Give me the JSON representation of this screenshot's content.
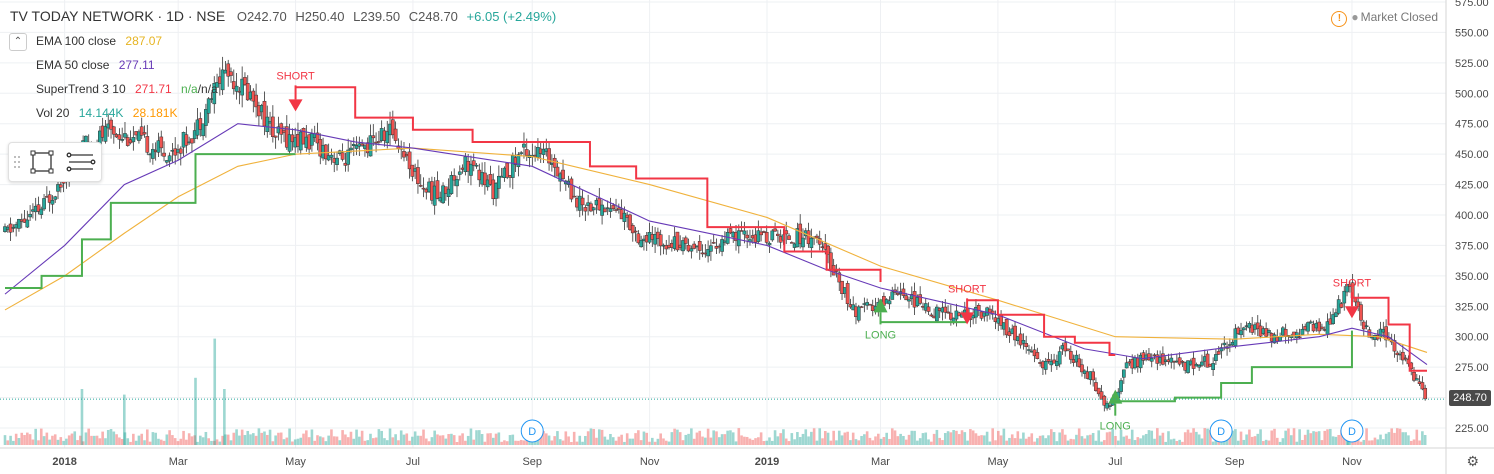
{
  "header": {
    "symbol": "TV TODAY NETWORK · 1D · NSE",
    "open": "O242.70",
    "high": "H250.40",
    "low": "L239.50",
    "close": "C248.70",
    "change": "+6.05 (+2.49%)"
  },
  "indicators": [
    {
      "name": "EMA 100 close",
      "value": "287.07",
      "color": "#e6b422"
    },
    {
      "name": "EMA 50 close",
      "value": "277.11",
      "color": "#673ab7"
    },
    {
      "name": "SuperTrend 3 10",
      "value": "271.71",
      "value2": "n/a",
      "value3": "n/a",
      "color": "#f23645"
    },
    {
      "name": "Vol 20",
      "value": "14.144K",
      "value2": "28.181K",
      "color": "#26a69a",
      "color2": "#ff9800"
    }
  ],
  "market_status": "Market Closed",
  "last_price_label": "248.70",
  "toolbar": {
    "collapse_icon": "chevron-up-icon",
    "tool1_icon": "rectangle-tool-icon",
    "tool2_icon": "lines-tool-icon",
    "settings_icon": "gear-icon"
  },
  "chart_data": {
    "type": "candlestick",
    "title": "TV TODAY NETWORK · 1D · NSE",
    "y_axis": {
      "ylim": [
        225,
        575
      ],
      "ticks": [
        225,
        250,
        275,
        300,
        325,
        350,
        375,
        400,
        425,
        450,
        475,
        500,
        525,
        550,
        575
      ],
      "tick_labels": [
        "225.00",
        "250.00",
        "275.00",
        "300.00",
        "325.00",
        "350.00",
        "375.00",
        "400.00",
        "425.00",
        "450.00",
        "475.00",
        "500.00",
        "525.00",
        "550.00",
        "575.00"
      ]
    },
    "x_axis": {
      "tick_labels": [
        "2018",
        "Mar",
        "May",
        "Jul",
        "Sep",
        "Nov",
        "2019",
        "Mar",
        "May",
        "Jul",
        "Sep",
        "Nov"
      ],
      "tick_dates": [
        "2018-01-01",
        "2018-03-01",
        "2018-05-01",
        "2018-07-01",
        "2018-09-01",
        "2018-11-01",
        "2019-01-01",
        "2019-03-01",
        "2019-05-01",
        "2019-07-01",
        "2019-09-01",
        "2019-11-01"
      ],
      "range": [
        "2017-12-01",
        "2019-12-10"
      ]
    },
    "last_price": 248.7,
    "price_path": [
      [
        "2017-12-01",
        385
      ],
      [
        "2017-12-20",
        405
      ],
      [
        "2018-01-10",
        455
      ],
      [
        "2018-01-25",
        470
      ],
      [
        "2018-02-10",
        460
      ],
      [
        "2018-02-25",
        450
      ],
      [
        "2018-03-10",
        470
      ],
      [
        "2018-03-25",
        520
      ],
      [
        "2018-04-10",
        495
      ],
      [
        "2018-04-20",
        465
      ],
      [
        "2018-05-10",
        460
      ],
      [
        "2018-05-25",
        445
      ],
      [
        "2018-06-05",
        455
      ],
      [
        "2018-06-20",
        470
      ],
      [
        "2018-07-05",
        425
      ],
      [
        "2018-07-15",
        415
      ],
      [
        "2018-07-28",
        445
      ],
      [
        "2018-08-12",
        420
      ],
      [
        "2018-08-28",
        455
      ],
      [
        "2018-09-12",
        445
      ],
      [
        "2018-09-25",
        410
      ],
      [
        "2018-10-15",
        405
      ],
      [
        "2018-10-28",
        380
      ],
      [
        "2018-11-15",
        378
      ],
      [
        "2018-11-30",
        372
      ],
      [
        "2018-12-15",
        382
      ],
      [
        "2019-01-05",
        382
      ],
      [
        "2019-01-25",
        383
      ],
      [
        "2019-02-05",
        355
      ],
      [
        "2019-02-15",
        320
      ],
      [
        "2019-02-28",
        325
      ],
      [
        "2019-03-10",
        340
      ],
      [
        "2019-03-25",
        322
      ],
      [
        "2019-04-10",
        318
      ],
      [
        "2019-04-25",
        320
      ],
      [
        "2019-05-10",
        300
      ],
      [
        "2019-05-25",
        275
      ],
      [
        "2019-06-05",
        290
      ],
      [
        "2019-06-18",
        268
      ],
      [
        "2019-06-28",
        240
      ],
      [
        "2019-07-08",
        278
      ],
      [
        "2019-07-22",
        283
      ],
      [
        "2019-08-05",
        277
      ],
      [
        "2019-08-20",
        280
      ],
      [
        "2019-09-05",
        310
      ],
      [
        "2019-09-20",
        300
      ],
      [
        "2019-10-05",
        305
      ],
      [
        "2019-10-20",
        310
      ],
      [
        "2019-10-30",
        340
      ],
      [
        "2019-11-08",
        305
      ],
      [
        "2019-11-20",
        300
      ],
      [
        "2019-12-01",
        275
      ],
      [
        "2019-12-10",
        248.7
      ]
    ],
    "ema100": [
      [
        "2017-12-01",
        322
      ],
      [
        "2018-01-01",
        350
      ],
      [
        "2018-02-01",
        385
      ],
      [
        "2018-03-01",
        415
      ],
      [
        "2018-04-01",
        440
      ],
      [
        "2018-05-01",
        450
      ],
      [
        "2018-07-01",
        455
      ],
      [
        "2018-09-01",
        448
      ],
      [
        "2018-11-01",
        425
      ],
      [
        "2019-01-01",
        398
      ],
      [
        "2019-03-01",
        358
      ],
      [
        "2019-05-01",
        330
      ],
      [
        "2019-07-01",
        300
      ],
      [
        "2019-09-01",
        298
      ],
      [
        "2019-10-15",
        302
      ],
      [
        "2019-11-15",
        300
      ],
      [
        "2019-12-10",
        287.07
      ]
    ],
    "ema50": [
      [
        "2017-12-01",
        335
      ],
      [
        "2018-01-01",
        375
      ],
      [
        "2018-02-01",
        425
      ],
      [
        "2018-03-01",
        445
      ],
      [
        "2018-04-01",
        475
      ],
      [
        "2018-05-01",
        470
      ],
      [
        "2018-06-01",
        460
      ],
      [
        "2018-07-01",
        455
      ],
      [
        "2018-09-01",
        440
      ],
      [
        "2018-11-01",
        395
      ],
      [
        "2019-01-01",
        375
      ],
      [
        "2019-02-01",
        355
      ],
      [
        "2019-03-01",
        340
      ],
      [
        "2019-05-01",
        318
      ],
      [
        "2019-06-15",
        290
      ],
      [
        "2019-07-15",
        282
      ],
      [
        "2019-09-01",
        292
      ],
      [
        "2019-10-15",
        300
      ],
      [
        "2019-11-01",
        307
      ],
      [
        "2019-11-20",
        300
      ],
      [
        "2019-12-10",
        277.11
      ]
    ],
    "supertrend": [
      {
        "trend": "up",
        "points": [
          [
            "2017-12-01",
            340
          ],
          [
            "2017-12-20",
            350
          ],
          [
            "2018-01-10",
            380
          ],
          [
            "2018-01-25",
            410
          ],
          [
            "2018-02-20",
            410
          ],
          [
            "2018-03-10",
            450
          ],
          [
            "2018-04-10",
            450
          ],
          [
            "2018-05-01",
            450
          ]
        ]
      },
      {
        "trend": "down",
        "points": [
          [
            "2018-05-01",
            505
          ],
          [
            "2018-06-01",
            480
          ],
          [
            "2018-07-01",
            470
          ],
          [
            "2018-08-01",
            460
          ],
          [
            "2018-09-05",
            460
          ],
          [
            "2018-10-01",
            440
          ],
          [
            "2018-10-25",
            430
          ],
          [
            "2018-12-01",
            390
          ],
          [
            "2019-01-10",
            370
          ],
          [
            "2019-02-01",
            355
          ],
          [
            "2019-03-01",
            345
          ]
        ]
      },
      {
        "trend": "up",
        "points": [
          [
            "2019-03-01",
            312
          ],
          [
            "2019-03-20",
            312
          ],
          [
            "2019-04-10",
            312
          ],
          [
            "2019-04-15",
            312
          ]
        ]
      },
      {
        "trend": "down",
        "points": [
          [
            "2019-04-15",
            330
          ],
          [
            "2019-05-01",
            318
          ],
          [
            "2019-05-25",
            300
          ],
          [
            "2019-06-10",
            295
          ],
          [
            "2019-06-28",
            285
          ],
          [
            "2019-07-01",
            285
          ]
        ]
      },
      {
        "trend": "up",
        "points": [
          [
            "2019-07-01",
            247
          ],
          [
            "2019-08-01",
            250
          ],
          [
            "2019-08-25",
            262
          ],
          [
            "2019-09-10",
            275
          ],
          [
            "2019-10-25",
            275
          ],
          [
            "2019-11-01",
            305
          ]
        ]
      },
      {
        "trend": "down",
        "points": [
          [
            "2019-11-01",
            332
          ],
          [
            "2019-11-20",
            310
          ],
          [
            "2019-12-01",
            272
          ],
          [
            "2019-12-10",
            272
          ]
        ]
      }
    ],
    "signals": [
      {
        "type": "SHORT",
        "date": "2018-05-01",
        "price": 495
      },
      {
        "type": "LONG",
        "date": "2019-03-01",
        "price": 320
      },
      {
        "type": "SHORT",
        "date": "2019-04-15",
        "price": 320
      },
      {
        "type": "LONG",
        "date": "2019-07-01",
        "price": 245
      },
      {
        "type": "SHORT",
        "date": "2019-11-01",
        "price": 325
      }
    ],
    "dividend_markers": [
      {
        "label": "D",
        "date": "2018-09-01"
      },
      {
        "label": "D",
        "date": "2019-08-25"
      },
      {
        "label": "D",
        "date": "2019-11-01"
      }
    ],
    "volume_highlights": [
      {
        "date": "2018-01-10",
        "height": 0.5
      },
      {
        "date": "2018-02-01",
        "height": 0.45
      },
      {
        "date": "2018-03-10",
        "height": 0.6
      },
      {
        "date": "2018-03-20",
        "height": 0.95
      },
      {
        "date": "2018-03-25",
        "height": 0.5
      },
      {
        "date": "2019-10-30",
        "height": 0.2
      }
    ],
    "colors": {
      "up": "#26a69a",
      "down": "#ef5350",
      "ema100": "#f0b23c",
      "ema50": "#673ab7",
      "st_up": "#4caf50",
      "st_down": "#f23645",
      "grid": "#eef0f3"
    }
  }
}
